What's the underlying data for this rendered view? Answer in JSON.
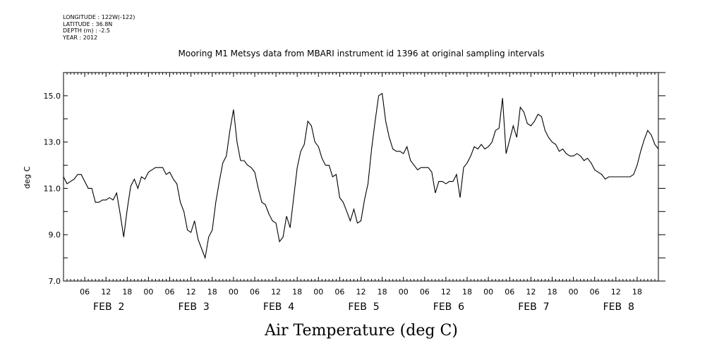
{
  "meta": {
    "longitude": "LONGITUDE : 122W(-122)",
    "latitude": "LATITUDE : 36.8N",
    "depth": "DEPTH (m) : -2.5",
    "year": "YEAR : 2012"
  },
  "chart_data": {
    "type": "line",
    "title": "Mooring M1 Metsys data from MBARI instrument id 1396 at original sampling intervals",
    "xlabel": "Air Temperature (deg C)",
    "ylabel": "deg C",
    "ylim": [
      7.0,
      16.0
    ],
    "yticks": [
      "7.0",
      "9.0",
      "11.0",
      "13.0",
      "15.0"
    ],
    "xlim_hours": [
      0,
      168
    ],
    "hour_ticks": [
      "06",
      "12",
      "18",
      "00",
      "06",
      "12",
      "18",
      "00",
      "06",
      "12",
      "18",
      "00",
      "06",
      "12",
      "18",
      "00",
      "06",
      "12",
      "18",
      "00",
      "06",
      "12",
      "18",
      "00",
      "06",
      "12",
      "18"
    ],
    "day_labels": [
      "FEB  2",
      "FEB  3",
      "FEB  4",
      "FEB  5",
      "FEB  6",
      "FEB  7",
      "FEB  8"
    ],
    "grid": false,
    "series": [
      {
        "x": [
          0,
          1,
          2,
          3,
          4,
          5,
          6,
          7,
          8,
          9,
          10,
          11,
          12,
          13,
          14,
          15,
          16,
          17,
          18,
          19,
          20,
          21,
          22,
          23,
          24,
          25,
          26,
          27,
          28,
          29,
          30,
          31,
          32,
          33,
          34,
          35,
          36,
          37,
          38,
          39,
          40,
          41,
          42,
          43,
          44,
          45,
          46,
          47,
          48,
          49,
          50,
          51,
          52,
          53,
          54,
          55,
          56,
          57,
          58,
          59,
          60,
          61,
          62,
          63,
          64,
          65,
          66,
          67,
          68,
          69,
          70,
          71,
          72,
          73,
          74,
          75,
          76,
          77,
          78,
          79,
          80,
          81,
          82,
          83,
          84,
          85,
          86,
          87,
          88,
          89,
          90,
          91,
          92,
          93,
          94,
          95,
          96,
          97,
          98,
          99,
          100,
          101,
          102,
          103,
          104,
          105,
          106,
          107,
          108,
          109,
          110,
          111,
          112,
          113,
          114,
          115,
          116,
          117,
          118,
          119,
          120,
          121,
          122,
          123,
          124,
          125,
          126,
          127,
          128,
          129,
          130,
          131,
          132,
          133,
          134,
          135,
          136,
          137,
          138,
          139,
          140,
          141,
          142,
          143,
          144,
          145,
          146,
          147,
          148,
          149,
          150,
          151,
          152,
          153,
          154,
          155,
          156,
          157,
          158,
          159,
          160,
          161,
          162,
          163,
          164,
          165,
          166,
          167,
          168
        ],
        "y": [
          11.5,
          11.2,
          11.3,
          11.4,
          11.6,
          11.6,
          11.3,
          11.0,
          11.0,
          10.4,
          10.4,
          10.5,
          10.5,
          10.6,
          10.5,
          10.8,
          9.9,
          8.9,
          10.1,
          11.1,
          11.4,
          11.0,
          11.5,
          11.4,
          11.7,
          11.8,
          11.9,
          11.9,
          11.9,
          11.6,
          11.7,
          11.4,
          11.2,
          10.4,
          10.0,
          9.2,
          9.1,
          9.6,
          8.8,
          8.4,
          8.0,
          8.9,
          9.2,
          10.4,
          11.3,
          12.1,
          12.4,
          13.5,
          14.4,
          13.0,
          12.2,
          12.2,
          12.0,
          11.9,
          11.7,
          11.0,
          10.4,
          10.3,
          9.9,
          9.6,
          9.5,
          8.7,
          8.9,
          9.8,
          9.3,
          10.6,
          11.9,
          12.6,
          12.9,
          13.9,
          13.7,
          13.0,
          12.8,
          12.3,
          12.0,
          12.0,
          11.5,
          11.6,
          10.6,
          10.4,
          10.0,
          9.6,
          10.1,
          9.5,
          9.6,
          10.5,
          11.2,
          12.7,
          13.9,
          15.0,
          15.1,
          13.9,
          13.2,
          12.7,
          12.6,
          12.6,
          12.5,
          12.8,
          12.2,
          12.0,
          11.8,
          11.9,
          11.9,
          11.9,
          11.7,
          10.8,
          11.3,
          11.3,
          11.2,
          11.3,
          11.3,
          11.6,
          10.6,
          11.9,
          12.1,
          12.4,
          12.8,
          12.7,
          12.9,
          12.7,
          12.8,
          13.0,
          13.5,
          13.6,
          14.9,
          12.5,
          13.1,
          13.7,
          13.2,
          14.5,
          14.3,
          13.8,
          13.7,
          13.9,
          14.2,
          14.1,
          13.5,
          13.2,
          13.0,
          12.9,
          12.6,
          12.7,
          12.5,
          12.4,
          12.4,
          12.5,
          12.4,
          12.2,
          12.3,
          12.1,
          11.8,
          11.7,
          11.6,
          11.4,
          11.5,
          11.5,
          11.5,
          11.5,
          11.5,
          11.5,
          11.5,
          11.6,
          12.0,
          12.6,
          13.1,
          13.5,
          13.3,
          12.9,
          12.7
        ]
      }
    ]
  }
}
